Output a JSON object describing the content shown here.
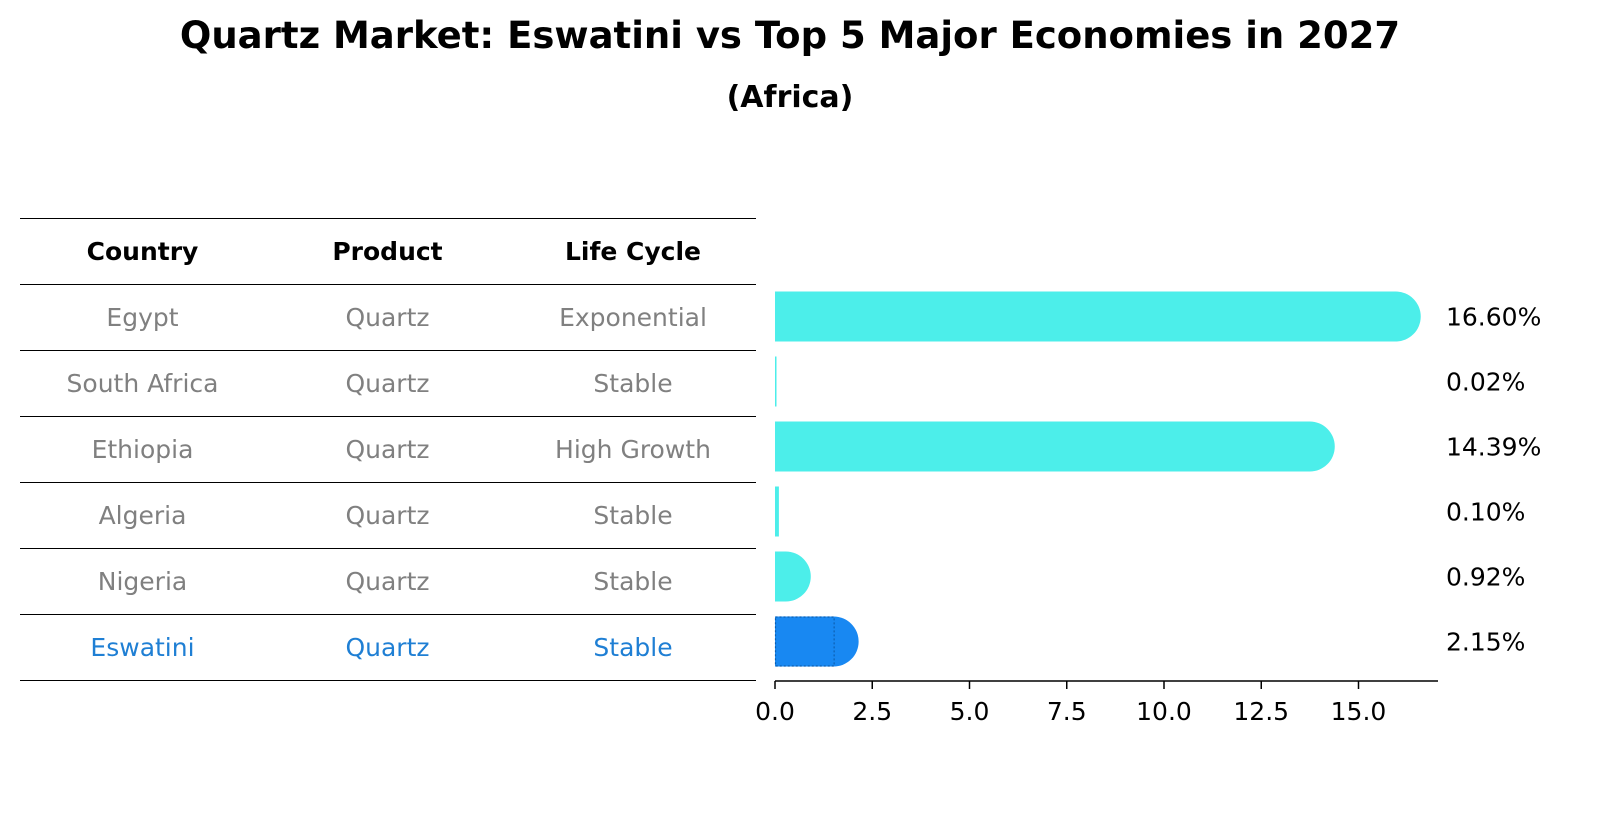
{
  "title": "Quartz Market: Eswatini vs Top 5 Major Economies in 2027",
  "subtitle": "(Africa)",
  "table": {
    "headers": [
      "Country",
      "Product",
      "Life Cycle"
    ],
    "rows": [
      {
        "country": "Egypt",
        "product": "Quartz",
        "life_cycle": "Exponential"
      },
      {
        "country": "South Africa",
        "product": "Quartz",
        "life_cycle": "Stable"
      },
      {
        "country": "Ethiopia",
        "product": "Quartz",
        "life_cycle": "High Growth"
      },
      {
        "country": "Algeria",
        "product": "Quartz",
        "life_cycle": "Stable"
      },
      {
        "country": "Nigeria",
        "product": "Quartz",
        "life_cycle": "Stable"
      },
      {
        "country": "Eswatini",
        "product": "Quartz",
        "life_cycle": "Stable"
      }
    ]
  },
  "colors": {
    "bar": "#4ceeea",
    "highlight_bar": "#1888f2",
    "highlight_text": "#1f7fd4",
    "muted_text": "#808080",
    "axis": "#000000"
  },
  "chart_data": {
    "type": "bar",
    "orientation": "horizontal",
    "categories": [
      "Egypt",
      "South Africa",
      "Ethiopia",
      "Algeria",
      "Nigeria",
      "Eswatini"
    ],
    "values": [
      16.6,
      0.02,
      14.39,
      0.1,
      0.92,
      2.15
    ],
    "value_labels": [
      "16.60%",
      "0.02%",
      "14.39%",
      "0.10%",
      "0.92%",
      "2.15%"
    ],
    "highlight_category": "Eswatini",
    "xlim": [
      0,
      17.5
    ],
    "xticks": [
      0,
      2.5,
      5,
      7.5,
      10,
      12.5,
      15
    ],
    "xtick_labels": [
      "0.0",
      "2.5",
      "5.0",
      "7.5",
      "10.0",
      "12.5",
      "15.0"
    ],
    "grid": false
  }
}
